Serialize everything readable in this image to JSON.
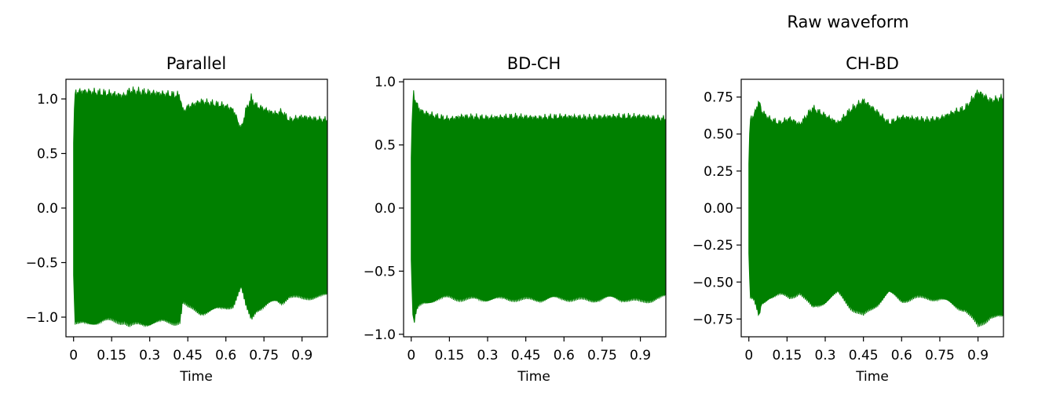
{
  "figure": {
    "suptitle": "Raw waveform"
  },
  "chart_data": [
    {
      "type": "area",
      "title": "Parallel",
      "xlabel": "Time",
      "ylabel": "",
      "xlim": [
        -0.03,
        1.0
      ],
      "ylim": [
        -1.18,
        1.18
      ],
      "xticks": [
        0,
        0.15,
        0.3,
        0.45,
        0.6,
        0.75,
        0.9
      ],
      "xtick_labels": [
        "0",
        "0.15",
        "0.3",
        "0.45",
        "0.6",
        "0.75",
        "0.9"
      ],
      "yticks": [
        -1.0,
        -0.5,
        0.0,
        0.5,
        1.0
      ],
      "ytick_labels": [
        "−1.0",
        "−0.5",
        "0.0",
        "0.5",
        "1.0"
      ],
      "color": "#008000",
      "grid": false,
      "envelope": {
        "t": [
          0.0,
          0.005,
          0.02,
          0.05,
          0.1,
          0.15,
          0.2,
          0.22,
          0.25,
          0.3,
          0.35,
          0.4,
          0.42,
          0.43,
          0.45,
          0.5,
          0.55,
          0.6,
          0.63,
          0.66,
          0.68,
          0.7,
          0.72,
          0.75,
          0.78,
          0.8,
          0.82,
          0.85,
          0.9,
          0.95,
          1.0
        ],
        "upper": [
          0.6,
          1.05,
          1.06,
          1.06,
          1.05,
          1.04,
          1.02,
          1.07,
          1.06,
          1.05,
          1.04,
          1.03,
          1.02,
          0.88,
          0.92,
          0.97,
          0.95,
          0.93,
          0.89,
          0.72,
          0.9,
          1.0,
          0.93,
          0.9,
          0.87,
          0.86,
          0.88,
          0.8,
          0.83,
          0.81,
          0.8
        ],
        "lower": [
          -0.6,
          -1.05,
          -1.06,
          -1.05,
          -1.04,
          -1.02,
          -1.02,
          -1.07,
          -1.06,
          -1.05,
          -1.04,
          -1.03,
          -1.02,
          -0.85,
          -0.9,
          -0.95,
          -0.94,
          -0.9,
          -0.88,
          -0.72,
          -0.9,
          -1.0,
          -0.92,
          -0.9,
          -0.87,
          -0.85,
          -0.86,
          -0.8,
          -0.82,
          -0.8,
          -0.8
        ]
      }
    },
    {
      "type": "area",
      "title": "BD-CH",
      "xlabel": "Time",
      "ylabel": "",
      "xlim": [
        -0.03,
        1.0
      ],
      "ylim": [
        -1.02,
        1.02
      ],
      "xticks": [
        0,
        0.15,
        0.3,
        0.45,
        0.6,
        0.75,
        0.9
      ],
      "xtick_labels": [
        "0",
        "0.15",
        "0.3",
        "0.45",
        "0.6",
        "0.75",
        "0.9"
      ],
      "yticks": [
        -1.0,
        -0.5,
        0.0,
        0.5,
        1.0
      ],
      "ytick_labels": [
        "−1.0",
        "−0.5",
        "0.0",
        "0.5",
        "1.0"
      ],
      "color": "#008000",
      "grid": false,
      "envelope": {
        "t": [
          0.0,
          0.005,
          0.01,
          0.015,
          0.02,
          0.03,
          0.05,
          0.1,
          0.15,
          0.2,
          0.3,
          0.4,
          0.5,
          0.6,
          0.7,
          0.8,
          0.9,
          1.0
        ],
        "upper": [
          0.4,
          0.8,
          0.92,
          0.85,
          0.83,
          0.78,
          0.75,
          0.72,
          0.7,
          0.72,
          0.71,
          0.72,
          0.71,
          0.72,
          0.71,
          0.72,
          0.72,
          0.7
        ],
        "lower": [
          -0.4,
          -0.8,
          -0.92,
          -0.88,
          -0.82,
          -0.78,
          -0.75,
          -0.72,
          -0.7,
          -0.71,
          -0.72,
          -0.71,
          -0.72,
          -0.71,
          -0.72,
          -0.71,
          -0.73,
          -0.7
        ]
      }
    },
    {
      "type": "area",
      "title": "CH-BD",
      "xlabel": "Time",
      "ylabel": "",
      "xlim": [
        -0.03,
        1.0
      ],
      "ylim": [
        -0.87,
        0.87
      ],
      "xticks": [
        0,
        0.15,
        0.3,
        0.45,
        0.6,
        0.75,
        0.9
      ],
      "xtick_labels": [
        "0",
        "0.15",
        "0.3",
        "0.45",
        "0.6",
        "0.75",
        "0.9"
      ],
      "yticks": [
        -0.75,
        -0.5,
        -0.25,
        0.0,
        0.25,
        0.5,
        0.75
      ],
      "ytick_labels": [
        "−0.75",
        "−0.50",
        "−0.25",
        "0.00",
        "0.25",
        "0.50",
        "0.75"
      ],
      "color": "#008000",
      "grid": false,
      "envelope": {
        "t": [
          0.0,
          0.005,
          0.02,
          0.04,
          0.05,
          0.08,
          0.12,
          0.16,
          0.2,
          0.25,
          0.3,
          0.35,
          0.4,
          0.45,
          0.5,
          0.55,
          0.6,
          0.65,
          0.7,
          0.75,
          0.8,
          0.85,
          0.9,
          0.95,
          1.0
        ],
        "upper": [
          0.3,
          0.6,
          0.62,
          0.72,
          0.65,
          0.6,
          0.57,
          0.6,
          0.56,
          0.67,
          0.62,
          0.57,
          0.66,
          0.72,
          0.65,
          0.57,
          0.61,
          0.6,
          0.59,
          0.6,
          0.64,
          0.67,
          0.78,
          0.72,
          0.74
        ],
        "lower": [
          -0.3,
          -0.6,
          -0.62,
          -0.74,
          -0.65,
          -0.6,
          -0.58,
          -0.6,
          -0.56,
          -0.67,
          -0.63,
          -0.57,
          -0.66,
          -0.72,
          -0.65,
          -0.57,
          -0.62,
          -0.6,
          -0.6,
          -0.61,
          -0.65,
          -0.68,
          -0.79,
          -0.72,
          -0.74
        ]
      }
    }
  ]
}
